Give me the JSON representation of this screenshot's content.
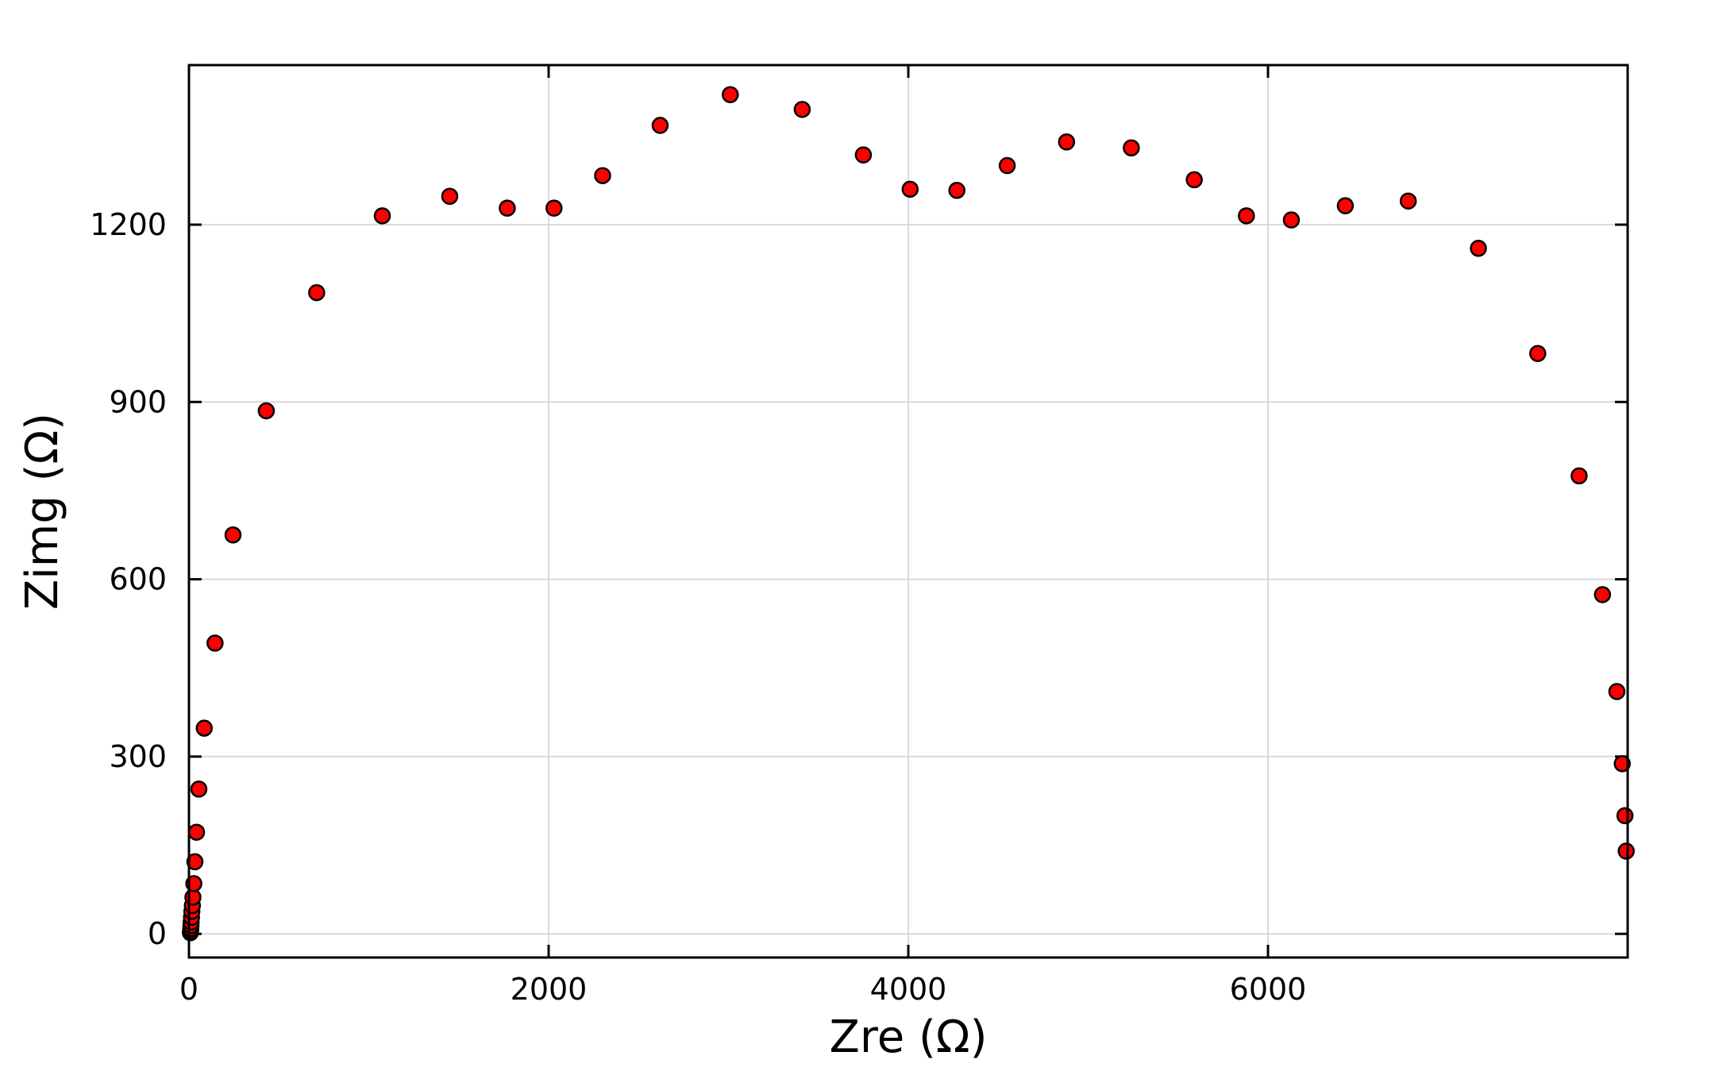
{
  "chart_data": {
    "type": "scatter",
    "title": "",
    "xlabel": "Zre (Ω)",
    "ylabel": "Zimg (Ω)",
    "xlim": [
      0,
      8000
    ],
    "ylim": [
      -40,
      1470
    ],
    "xticks": [
      0,
      2000,
      4000,
      6000
    ],
    "yticks": [
      0,
      300,
      600,
      900,
      1200
    ],
    "xtick_labels": [
      "0",
      "2000",
      "4000",
      "6000"
    ],
    "ytick_labels": [
      "0",
      "300",
      "600",
      "900",
      "1200"
    ],
    "grid": true,
    "legend": "none",
    "marker_color": "#ff0000",
    "marker_edge_color": "#000000",
    "series": [
      {
        "x": [
          8,
          9,
          10,
          11,
          12,
          14,
          16,
          19,
          22,
          27,
          33,
          42,
          55,
          85,
          145,
          245,
          430,
          710,
          1075,
          1450,
          1770,
          2030,
          2300,
          2620,
          3010,
          3410,
          3750,
          4010,
          4270,
          4550,
          4880,
          5240,
          5590,
          5880,
          6130,
          6430,
          6780,
          7170,
          7500,
          7730,
          7860,
          7940,
          7970,
          7985,
          7992
        ],
        "y": [
          2,
          5,
          9,
          14,
          20,
          28,
          38,
          48,
          62,
          85,
          122,
          172,
          245,
          348,
          492,
          675,
          885,
          1085,
          1215,
          1248,
          1228,
          1228,
          1283,
          1368,
          1420,
          1395,
          1318,
          1260,
          1258,
          1300,
          1340,
          1330,
          1276,
          1215,
          1208,
          1232,
          1240,
          1160,
          982,
          775,
          574,
          410,
          288,
          200,
          140
        ]
      }
    ]
  }
}
